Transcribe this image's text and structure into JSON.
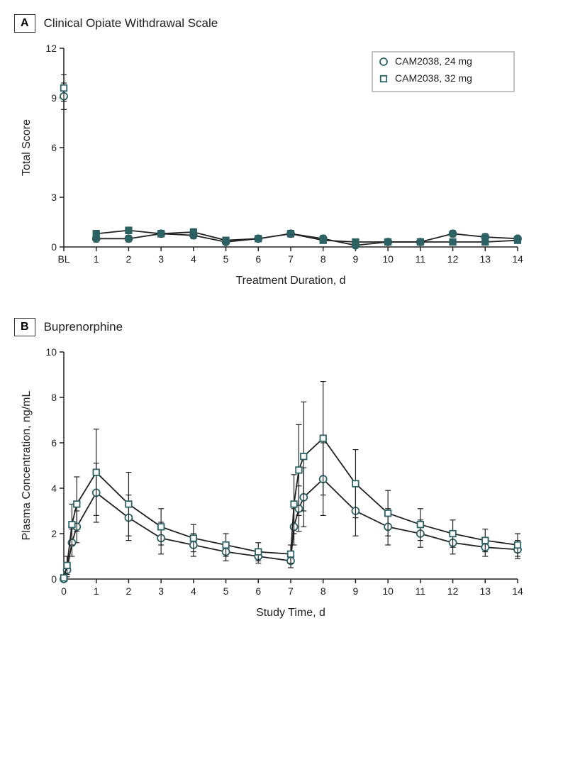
{
  "colors": {
    "series": "#2d6264",
    "axis": "#222222",
    "text": "#222222",
    "bg": "#ffffff",
    "legend_border": "#888888"
  },
  "font": {
    "family": "Arial, Helvetica, sans-serif",
    "axis_label": 16,
    "tick": 14,
    "legend": 14,
    "title": 17
  },
  "panelA": {
    "label": "A",
    "title": "Clinical Opiate Withdrawal Scale",
    "ylabel": "Total Score",
    "xlabel": "Treatment Duration, d",
    "ylim": [
      0,
      12
    ],
    "ytick_step": 3,
    "x_categories": [
      "BL",
      "1",
      "2",
      "3",
      "4",
      "5",
      "6",
      "7",
      "8",
      "9",
      "10",
      "11",
      "12",
      "13",
      "14"
    ],
    "legend": [
      "CAM2038, 24 mg",
      "CAM2038, 32 mg"
    ],
    "series": [
      {
        "name": "CAM2038, 24 mg",
        "marker": "circle",
        "y": [
          9.1,
          0.5,
          0.5,
          0.8,
          0.7,
          0.3,
          0.5,
          0.8,
          0.5,
          0.1,
          0.3,
          0.3,
          0.8,
          0.6,
          0.5
        ],
        "err": [
          0.8,
          0.2,
          0.2,
          0.2,
          0.2,
          0.1,
          0.1,
          0.2,
          0.2,
          0.1,
          0.1,
          0.1,
          0.2,
          0.2,
          0.1
        ],
        "bl_open": true
      },
      {
        "name": "CAM2038, 32 mg",
        "marker": "square",
        "y": [
          9.6,
          0.8,
          1.0,
          0.8,
          0.9,
          0.4,
          0.5,
          0.8,
          0.4,
          0.3,
          0.3,
          0.3,
          0.3,
          0.3,
          0.4
        ],
        "err": [
          0.8,
          0.2,
          0.2,
          0.2,
          0.2,
          0.1,
          0.1,
          0.2,
          0.1,
          0.1,
          0.1,
          0.1,
          0.1,
          0.1,
          0.1
        ],
        "bl_open": true
      }
    ]
  },
  "panelB": {
    "label": "B",
    "title": "Buprenorphine",
    "ylabel": "Plasma Concentration, ng/mL",
    "xlabel": "Study Time, d",
    "ylim": [
      0,
      10
    ],
    "ytick_step": 2,
    "xlim": [
      0,
      14
    ],
    "xtick_step": 1,
    "legend_shared_with": "A",
    "series": [
      {
        "name": "CAM2038, 24 mg",
        "marker": "circle",
        "x": [
          0,
          0.1,
          0.25,
          0.4,
          1,
          2,
          3,
          4,
          5,
          6,
          7,
          7.1,
          7.25,
          7.4,
          8,
          9,
          10,
          11,
          12,
          13,
          14
        ],
        "y": [
          0.0,
          0.4,
          1.6,
          2.3,
          3.8,
          2.7,
          1.8,
          1.5,
          1.2,
          1.0,
          0.8,
          2.3,
          3.1,
          3.6,
          4.4,
          3.0,
          2.3,
          2.0,
          1.6,
          1.4,
          1.3
        ],
        "err": [
          0.0,
          0.3,
          0.6,
          0.7,
          1.3,
          1.0,
          0.7,
          0.5,
          0.4,
          0.3,
          0.3,
          0.8,
          1.0,
          1.3,
          1.6,
          1.1,
          0.8,
          0.6,
          0.5,
          0.4,
          0.4
        ]
      },
      {
        "name": "CAM2038, 32 mg",
        "marker": "square",
        "x": [
          0,
          0.1,
          0.25,
          0.4,
          1,
          2,
          3,
          4,
          5,
          6,
          7,
          7.1,
          7.25,
          7.4,
          8,
          9,
          10,
          11,
          12,
          13,
          14
        ],
        "y": [
          0.05,
          0.6,
          2.4,
          3.3,
          4.7,
          3.3,
          2.3,
          1.8,
          1.5,
          1.2,
          1.1,
          3.3,
          4.8,
          5.4,
          6.2,
          4.2,
          2.9,
          2.4,
          2.0,
          1.7,
          1.5
        ],
        "err": [
          0.05,
          0.4,
          0.9,
          1.2,
          1.9,
          1.4,
          0.8,
          0.6,
          0.5,
          0.4,
          0.4,
          1.3,
          2.0,
          2.4,
          2.5,
          1.5,
          1.0,
          0.7,
          0.6,
          0.5,
          0.5
        ]
      }
    ]
  }
}
